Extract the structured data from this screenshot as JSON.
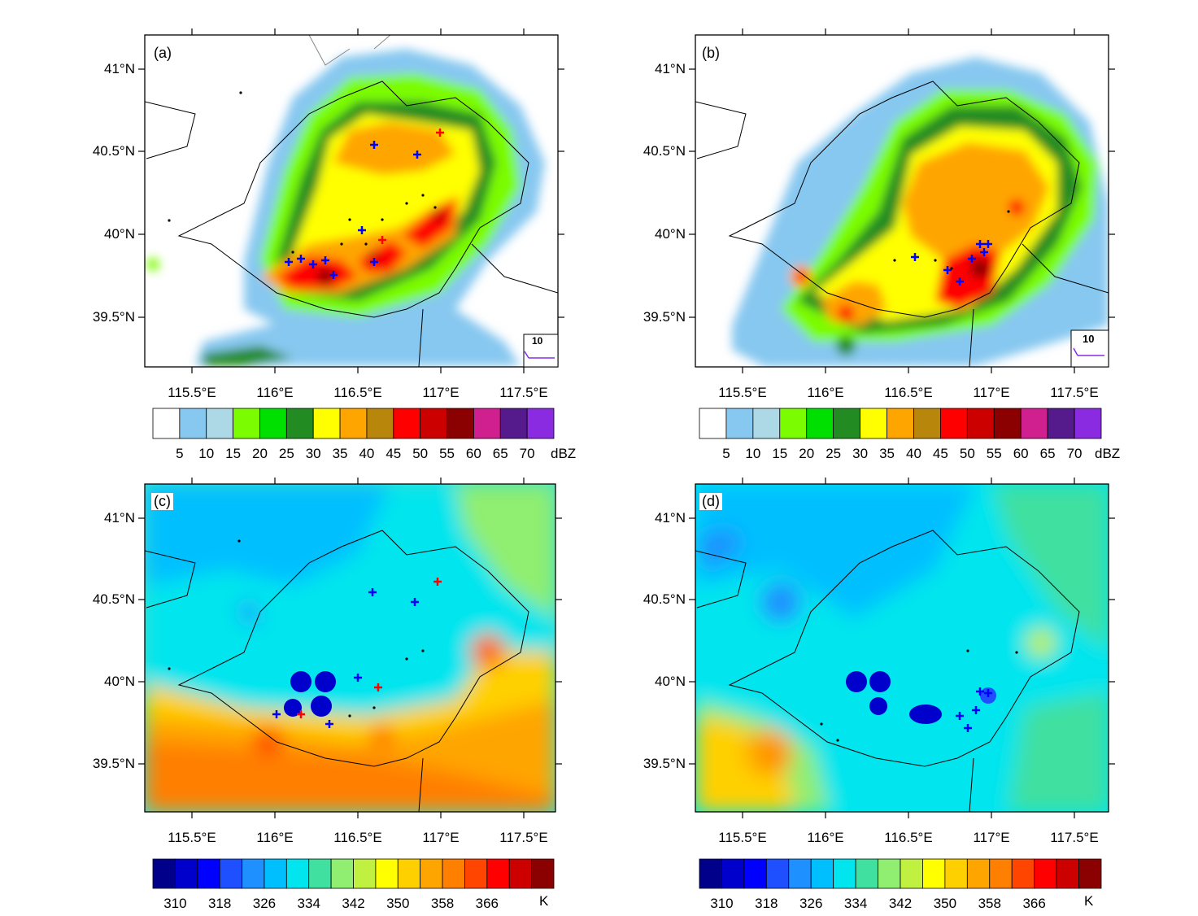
{
  "panels": [
    {
      "label": "(a)",
      "field": "reflectivity"
    },
    {
      "label": "(b)",
      "field": "reflectivity"
    },
    {
      "label": "(c)",
      "field": "theta_e"
    },
    {
      "label": "(d)",
      "field": "theta_e"
    }
  ],
  "lat_ticks": [
    "41°N",
    "40.5°N",
    "40°N",
    "39.5°N"
  ],
  "lon_ticks": [
    "115.5°E",
    "116°E",
    "116.5°E",
    "117°E",
    "117.5°E"
  ],
  "wind_legend": {
    "value": "10"
  },
  "colorbar_reflectivity": {
    "units": "dBZ",
    "labels": [
      "5",
      "10",
      "15",
      "20",
      "25",
      "30",
      "35",
      "40",
      "45",
      "50",
      "55",
      "60",
      "65",
      "70"
    ],
    "colors": [
      "#ffffff",
      "#87c8f0",
      "#add8e6",
      "#7cfc00",
      "#00e000",
      "#228b22",
      "#ffff00",
      "#ffa500",
      "#b8860b",
      "#ff0000",
      "#cd0000",
      "#8b0000",
      "#d02090",
      "#551a8b",
      "#8a2be2"
    ]
  },
  "colorbar_theta": {
    "units": "K",
    "labels": [
      "310",
      "318",
      "326",
      "334",
      "342",
      "350",
      "358",
      "366"
    ],
    "colors": [
      "#00008b",
      "#0000cd",
      "#0000ff",
      "#1e50ff",
      "#1e90ff",
      "#00bfff",
      "#00e5ee",
      "#40e0a0",
      "#90ee70",
      "#c0f040",
      "#ffff00",
      "#ffd000",
      "#ffa500",
      "#ff7f00",
      "#ff4500",
      "#ff0000",
      "#cd0000",
      "#8b0000"
    ]
  }
}
